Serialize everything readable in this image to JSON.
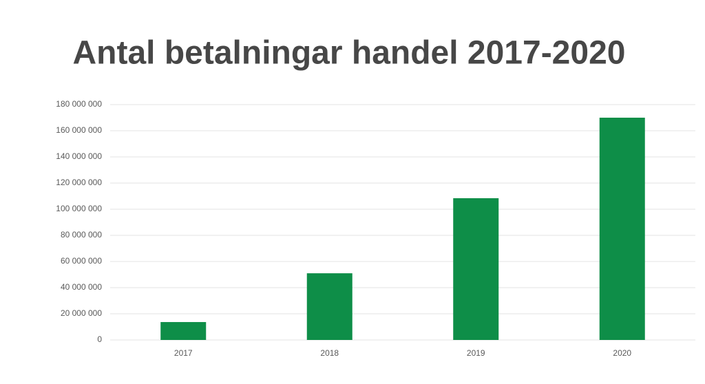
{
  "chart_data": {
    "type": "bar",
    "title": "Antal betalningar handel 2017-2020",
    "categories": [
      "2017",
      "2018",
      "2019",
      "2020"
    ],
    "values": [
      13700000,
      51000000,
      108400000,
      170000000
    ],
    "color": "#0e8e48",
    "ylim": [
      0,
      180000000
    ],
    "yticks": [
      0,
      {
        "value": 20000000,
        "label": "20 000 000"
      },
      {
        "value": 40000000,
        "label": "40 000 000"
      },
      {
        "value": 60000000,
        "label": "60 000 000"
      },
      {
        "value": 80000000,
        "label": "80 000 000"
      },
      {
        "value": 100000000,
        "label": "100 000 000"
      },
      {
        "value": 120000000,
        "label": "120 000 000"
      },
      {
        "value": 140000000,
        "label": "140 000 000"
      },
      {
        "value": 160000000,
        "label": "160 000 000"
      },
      {
        "value": 180000000,
        "label": "180 000 000"
      }
    ],
    "grid": true
  }
}
